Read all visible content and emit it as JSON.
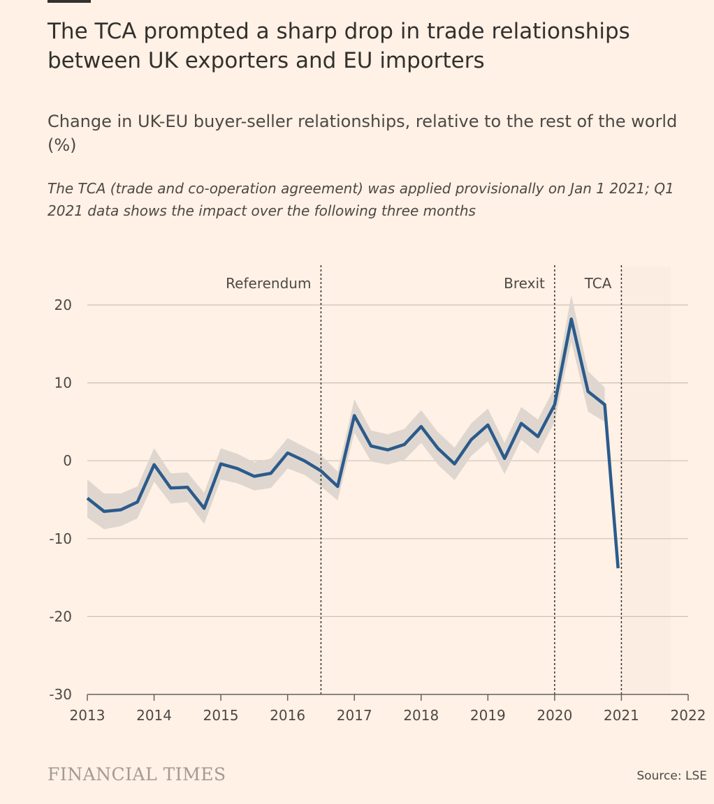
{
  "header": {
    "title": "The TCA prompted a sharp drop in trade relationships between UK exporters and EU importers",
    "subtitle": "Change in UK-EU buyer-seller relationships, relative to the rest of the world (%)",
    "note": "The TCA (trade and co-operation agreement) was applied provisionally on Jan 1 2021; Q1 2021 data shows the impact over the following three months"
  },
  "footer": {
    "brand": "FINANCIAL TIMES",
    "source": "Source: LSE"
  },
  "colors": {
    "background": "#FFF1E5",
    "line": "#2B5B8C",
    "band": "#DDD5CD",
    "grid": "#CCC1B7",
    "text": "#33302E"
  },
  "chart_data": {
    "type": "line",
    "xlim": [
      2013,
      2022
    ],
    "ylim": [
      -30,
      20
    ],
    "x_ticks": [
      2013,
      2014,
      2015,
      2016,
      2017,
      2018,
      2019,
      2020,
      2021,
      2022
    ],
    "x_tick_labels": [
      "2013",
      "2014",
      "2015",
      "2016",
      "2017",
      "2018",
      "2019",
      "2020",
      "2021",
      "2022"
    ],
    "y_ticks": [
      -30,
      -20,
      -10,
      0,
      10,
      20
    ],
    "y_tick_labels": [
      "-30",
      "-20",
      "-10",
      "0",
      "10",
      "20"
    ],
    "series": [
      {
        "name": "UK-EU buyer-seller relationships",
        "x": [
          2013.0,
          2013.25,
          2013.5,
          2013.75,
          2014.0,
          2014.25,
          2014.5,
          2014.75,
          2015.0,
          2015.25,
          2015.5,
          2015.75,
          2016.0,
          2016.25,
          2016.5,
          2016.75,
          2017.0,
          2017.25,
          2017.5,
          2017.75,
          2018.0,
          2018.25,
          2018.5,
          2018.75,
          2019.0,
          2019.25,
          2019.5,
          2019.75,
          2020.0,
          2020.25,
          2020.5,
          2020.75,
          2020.95
        ],
        "values": [
          -4.8,
          -6.5,
          -6.3,
          -5.3,
          -0.5,
          -3.5,
          -3.4,
          -6.1,
          -0.4,
          -1.0,
          -2.0,
          -1.6,
          1.0,
          0.0,
          -1.3,
          -3.3,
          5.8,
          1.9,
          1.4,
          2.1,
          4.4,
          1.6,
          -0.4,
          2.7,
          4.6,
          0.3,
          4.8,
          3.1,
          7.2,
          18.2,
          8.9,
          7.2,
          -13.8
        ],
        "lower": [
          -7.3,
          -8.8,
          -8.4,
          -7.4,
          -2.7,
          -5.5,
          -5.3,
          -8.1,
          -2.4,
          -2.9,
          -3.8,
          -3.5,
          -1.0,
          -1.8,
          -3.3,
          -5.1,
          3.6,
          -0.1,
          -0.5,
          0.1,
          2.3,
          -0.5,
          -2.5,
          0.6,
          2.5,
          -1.7,
          2.7,
          0.9,
          5.0,
          15.3,
          6.3,
          5.0,
          null
        ],
        "upper": [
          -2.4,
          -4.2,
          -4.2,
          -3.3,
          1.6,
          -1.6,
          -1.5,
          -4.1,
          1.6,
          0.9,
          -0.2,
          0.3,
          2.9,
          1.8,
          0.7,
          -1.4,
          7.9,
          3.9,
          3.4,
          4.1,
          6.5,
          3.7,
          1.7,
          4.8,
          6.7,
          2.3,
          6.9,
          5.3,
          9.4,
          21.3,
          11.5,
          9.4,
          null
        ]
      }
    ],
    "annotations": [
      {
        "label": "Referendum",
        "x": 2016.5
      },
      {
        "label": "Brexit",
        "x": 2020.0
      },
      {
        "label": "TCA",
        "x": 2021.0
      }
    ]
  }
}
